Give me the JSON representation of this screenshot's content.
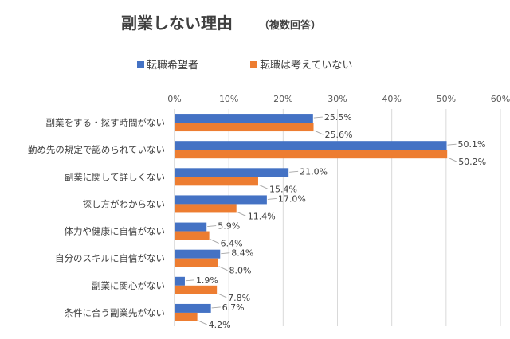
{
  "chart_data": {
    "type": "bar",
    "orientation": "horizontal",
    "title": "副業しない理由",
    "subtitle": "（複数回答）",
    "categories": [
      "副業をする・探す時間がない",
      "勤め先の規定で認められていない",
      "副業に関して詳しくない",
      "探し方がわからない",
      "体力や健康に自信がない",
      "自分のスキルに自信がない",
      "副業に関心がない",
      "条件に合う副業先がない"
    ],
    "series": [
      {
        "name": "転職希望者",
        "color": "#4472c4",
        "values": [
          25.5,
          50.1,
          21.0,
          17.0,
          5.9,
          8.4,
          1.9,
          6.7
        ],
        "labels": [
          "25.5%",
          "50.1%",
          "21.0%",
          "17.0%",
          "5.9%",
          "8.4%",
          "1.9%",
          "6.7%"
        ]
      },
      {
        "name": "転職は考えていない",
        "color": "#ed7d31",
        "values": [
          25.6,
          50.2,
          15.4,
          11.4,
          6.4,
          8.0,
          7.8,
          4.2
        ],
        "labels": [
          "25.6%",
          "50.2%",
          "15.4%",
          "11.4%",
          "6.4%",
          "8.0%",
          "7.8%",
          "4.2%"
        ]
      }
    ],
    "xlim": [
      0,
      60
    ],
    "xticks": [
      0,
      10,
      20,
      30,
      40,
      50,
      60
    ],
    "xtick_labels": [
      "0%",
      "10%",
      "20%",
      "30%",
      "40%",
      "50%",
      "60%"
    ],
    "xaxis_position": "top",
    "legend_position": "top",
    "grid": true
  }
}
